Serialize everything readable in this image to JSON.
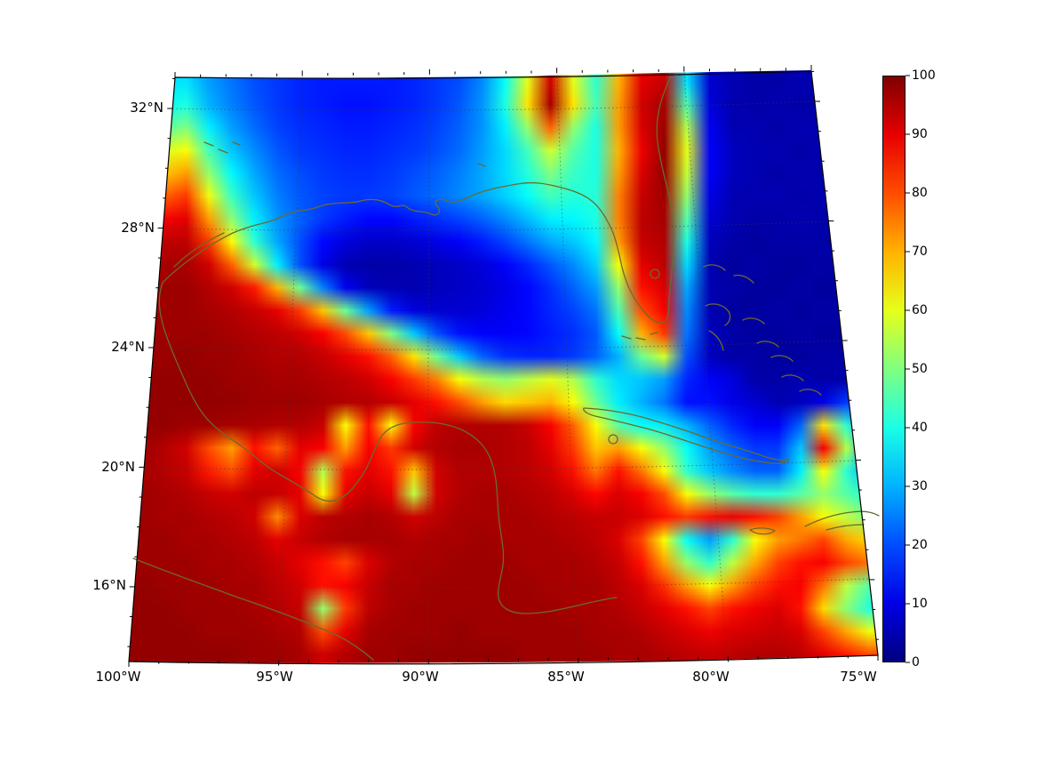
{
  "figure": {
    "background": "#ffffff"
  },
  "colors": {
    "coastline": "#6b6b2e",
    "frame": "#000000",
    "gridline": "#3a3a3a"
  },
  "chart_data": {
    "type": "heatmap",
    "title": "",
    "projection": "lambert-conformal-conic",
    "region": "Gulf of Mexico / Caribbean",
    "x_axis": {
      "side": "bottom",
      "ticks": [
        "100°W",
        "95°W",
        "90°W",
        "85°W",
        "80°W",
        "75°W"
      ]
    },
    "y_axis": {
      "side": "left",
      "ticks": [
        "32°N",
        "28°N",
        "24°N",
        "20°N",
        "16°N"
      ]
    },
    "colorbar": {
      "min": 0,
      "max": 100,
      "colormap": "jet",
      "tick_labels": [
        "100",
        "90",
        "80",
        "70",
        "60",
        "50",
        "40",
        "30",
        "20",
        "10",
        "0"
      ],
      "gradient_top_to_bottom": [
        "#800000 0%",
        "#e60000 10%",
        "#ff4d00 20%",
        "#ffb300 30%",
        "#e6ff1a 40%",
        "#80ff80 50%",
        "#1affe6 60%",
        "#00b3ff 70%",
        "#004dff 80%",
        "#0000e6 90%",
        "#000080 100%"
      ]
    },
    "grid": {
      "cols": 33,
      "rows": 26,
      "value_range": [
        0,
        100
      ],
      "values": [
        [
          35,
          35,
          35,
          28,
          24,
          20,
          18,
          16,
          15,
          15,
          15,
          15,
          16,
          18,
          20,
          26,
          38,
          60,
          92,
          60,
          42,
          70,
          90,
          93,
          35,
          8,
          5,
          4,
          4,
          5,
          4,
          4,
          5
        ],
        [
          38,
          38,
          40,
          30,
          25,
          21,
          18,
          16,
          15,
          14,
          14,
          15,
          16,
          18,
          21,
          27,
          40,
          65,
          96,
          65,
          44,
          72,
          92,
          96,
          45,
          9,
          5,
          4,
          5,
          4,
          4,
          5,
          4
        ],
        [
          45,
          46,
          50,
          36,
          28,
          23,
          19,
          17,
          16,
          15,
          15,
          16,
          17,
          19,
          22,
          27,
          36,
          52,
          78,
          52,
          40,
          72,
          91,
          97,
          55,
          11,
          5,
          5,
          4,
          5,
          5,
          4,
          5
        ],
        [
          55,
          58,
          62,
          44,
          32,
          26,
          21,
          18,
          17,
          16,
          16,
          17,
          18,
          20,
          23,
          28,
          34,
          44,
          58,
          46,
          40,
          70,
          89,
          98,
          60,
          12,
          6,
          5,
          5,
          4,
          5,
          5,
          4
        ],
        [
          65,
          68,
          72,
          52,
          37,
          29,
          23,
          20,
          18,
          17,
          17,
          18,
          20,
          22,
          25,
          29,
          34,
          41,
          50,
          43,
          40,
          72,
          91,
          98,
          57,
          12,
          6,
          5,
          4,
          5,
          4,
          4,
          5
        ],
        [
          75,
          78,
          82,
          61,
          43,
          32,
          25,
          21,
          19,
          18,
          18,
          19,
          21,
          23,
          26,
          29,
          33,
          38,
          44,
          41,
          41,
          75,
          93,
          97,
          52,
          10,
          5,
          5,
          5,
          4,
          5,
          5,
          4
        ],
        [
          85,
          88,
          90,
          72,
          51,
          36,
          27,
          22,
          18,
          15,
          13,
          13,
          15,
          17,
          19,
          22,
          26,
          31,
          36,
          37,
          40,
          75,
          94,
          96,
          46,
          8,
          5,
          4,
          4,
          5,
          4,
          4,
          4
        ],
        [
          92,
          94,
          94,
          82,
          62,
          42,
          29,
          20,
          13,
          9,
          7,
          7,
          8,
          10,
          12,
          15,
          19,
          24,
          29,
          32,
          37,
          72,
          93,
          95,
          40,
          6,
          4,
          3,
          4,
          4,
          4,
          3,
          4
        ],
        [
          96,
          96,
          96,
          92,
          78,
          58,
          36,
          20,
          10,
          5,
          4,
          4,
          5,
          6,
          7,
          9,
          12,
          16,
          21,
          26,
          33,
          62,
          90,
          94,
          34,
          5,
          3,
          4,
          3,
          3,
          4,
          3,
          3
        ],
        [
          97,
          97,
          97,
          95,
          92,
          85,
          70,
          48,
          25,
          11,
          6,
          5,
          5,
          6,
          7,
          8,
          10,
          13,
          17,
          22,
          28,
          52,
          86,
          91,
          29,
          5,
          4,
          3,
          3,
          4,
          3,
          3,
          4
        ],
        [
          97,
          97,
          97,
          96,
          95,
          93,
          90,
          82,
          68,
          48,
          28,
          15,
          9,
          8,
          8,
          9,
          11,
          13,
          16,
          19,
          24,
          45,
          80,
          88,
          26,
          5,
          3,
          3,
          4,
          3,
          4,
          4,
          3
        ],
        [
          97,
          97,
          97,
          97,
          96,
          95,
          94,
          92,
          88,
          80,
          68,
          50,
          32,
          20,
          14,
          12,
          12,
          13,
          15,
          17,
          21,
          38,
          70,
          82,
          24,
          6,
          4,
          3,
          3,
          4,
          3,
          3,
          4
        ],
        [
          98,
          97,
          98,
          97,
          97,
          96,
          95,
          95,
          93,
          90,
          86,
          78,
          65,
          48,
          32,
          22,
          17,
          16,
          16,
          18,
          22,
          30,
          48,
          58,
          20,
          6,
          4,
          4,
          3,
          3,
          4,
          4,
          3
        ],
        [
          98,
          98,
          98,
          98,
          97,
          97,
          96,
          96,
          95,
          94,
          92,
          88,
          82,
          75,
          62,
          55,
          52,
          56,
          60,
          55,
          42,
          34,
          32,
          28,
          16,
          12,
          9,
          4,
          4,
          5,
          4,
          4,
          4
        ],
        [
          98,
          98,
          98,
          98,
          98,
          97,
          97,
          97,
          96,
          95,
          95,
          93,
          90,
          86,
          80,
          72,
          66,
          68,
          70,
          62,
          48,
          36,
          30,
          24,
          14,
          14,
          10,
          8,
          5,
          6,
          10,
          18,
          16
        ],
        [
          98,
          98,
          97,
          97,
          96,
          96,
          95,
          95,
          93,
          62,
          86,
          62,
          88,
          94,
          95,
          95,
          95,
          93,
          88,
          78,
          62,
          46,
          38,
          36,
          30,
          22,
          16,
          12,
          12,
          22,
          65,
          42,
          26
        ],
        [
          97,
          95,
          92,
          80,
          72,
          86,
          78,
          90,
          88,
          72,
          88,
          82,
          92,
          95,
          96,
          96,
          95,
          94,
          90,
          82,
          68,
          72,
          62,
          52,
          38,
          28,
          22,
          18,
          18,
          32,
          88,
          55,
          30
        ],
        [
          96,
          95,
          93,
          85,
          80,
          90,
          92,
          88,
          55,
          86,
          90,
          86,
          68,
          92,
          95,
          95,
          95,
          94,
          92,
          86,
          76,
          86,
          76,
          62,
          42,
          32,
          26,
          22,
          22,
          36,
          62,
          42,
          28
        ],
        [
          97,
          96,
          95,
          93,
          92,
          94,
          93,
          90,
          62,
          90,
          93,
          90,
          56,
          92,
          95,
          96,
          96,
          95,
          94,
          91,
          87,
          91,
          88,
          80,
          62,
          52,
          46,
          42,
          42,
          46,
          52,
          46,
          40
        ],
        [
          97,
          96,
          96,
          95,
          94,
          92,
          74,
          91,
          94,
          95,
          96,
          95,
          92,
          94,
          96,
          96,
          96,
          96,
          95,
          94,
          93,
          93,
          91,
          86,
          82,
          86,
          89,
          86,
          81,
          72,
          62,
          56,
          50
        ],
        [
          97,
          97,
          96,
          96,
          95,
          94,
          90,
          93,
          95,
          96,
          96,
          96,
          95,
          96,
          96,
          97,
          96,
          96,
          96,
          95,
          94,
          91,
          81,
          62,
          38,
          28,
          42,
          62,
          72,
          76,
          81,
          71,
          66
        ],
        [
          97,
          97,
          97,
          96,
          96,
          95,
          93,
          90,
          86,
          81,
          91,
          95,
          96,
          96,
          97,
          97,
          97,
          96,
          96,
          96,
          95,
          93,
          86,
          72,
          52,
          42,
          56,
          71,
          81,
          86,
          88,
          81,
          76
        ],
        [
          98,
          97,
          97,
          97,
          96,
          96,
          94,
          92,
          86,
          88,
          93,
          96,
          96,
          97,
          97,
          97,
          97,
          97,
          96,
          96,
          96,
          94,
          91,
          83,
          72,
          62,
          72,
          81,
          86,
          88,
          76,
          56,
          46
        ],
        [
          98,
          98,
          97,
          97,
          97,
          96,
          95,
          93,
          52,
          82,
          94,
          96,
          97,
          97,
          97,
          97,
          97,
          97,
          97,
          96,
          96,
          95,
          93,
          90,
          86,
          81,
          86,
          89,
          91,
          86,
          66,
          51,
          41
        ],
        [
          98,
          98,
          98,
          97,
          97,
          97,
          96,
          95,
          80,
          90,
          96,
          97,
          97,
          97,
          98,
          97,
          97,
          97,
          97,
          97,
          96,
          96,
          95,
          93,
          91,
          89,
          91,
          92,
          93,
          91,
          81,
          71,
          61
        ],
        [
          98,
          98,
          98,
          98,
          98,
          97,
          97,
          96,
          92,
          95,
          97,
          97,
          98,
          98,
          98,
          98,
          98,
          97,
          97,
          97,
          97,
          96,
          96,
          95,
          94,
          93,
          94,
          95,
          95,
          94,
          90,
          85,
          80
        ]
      ]
    }
  }
}
